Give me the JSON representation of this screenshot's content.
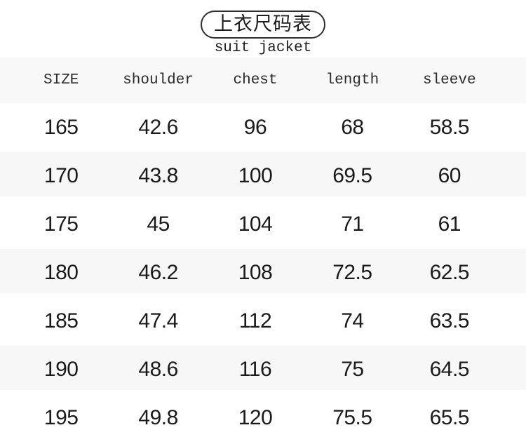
{
  "chart_data": {
    "type": "table",
    "title": "上衣尺码表",
    "subtitle": "suit jacket",
    "columns": [
      "SIZE",
      "shoulder",
      "chest",
      "length",
      "sleeve"
    ],
    "rows": [
      {
        "size": "165",
        "shoulder": "42.6",
        "chest": "96",
        "length": "68",
        "sleeve": "58.5"
      },
      {
        "size": "170",
        "shoulder": "43.8",
        "chest": "100",
        "length": "69.5",
        "sleeve": "60"
      },
      {
        "size": "175",
        "shoulder": "45",
        "chest": "104",
        "length": "71",
        "sleeve": "61"
      },
      {
        "size": "180",
        "shoulder": "46.2",
        "chest": "108",
        "length": "72.5",
        "sleeve": "62.5"
      },
      {
        "size": "185",
        "shoulder": "47.4",
        "chest": "112",
        "length": "74",
        "sleeve": "63.5"
      },
      {
        "size": "190",
        "shoulder": "48.6",
        "chest": "116",
        "length": "75",
        "sleeve": "64.5"
      },
      {
        "size": "195",
        "shoulder": "49.8",
        "chest": "120",
        "length": "75.5",
        "sleeve": "65.5"
      }
    ],
    "layout": {
      "legend": "none",
      "grid": "off",
      "striped_row_sizes": [
        "170",
        "180",
        "190"
      ],
      "header_row_shaded": true
    }
  },
  "colors": {
    "background": "#ffffff",
    "stripe": "#f7f7f8",
    "header_background": "#f8f8f9",
    "badge_border": "#2f2f2f",
    "text": "#1a1a1a"
  }
}
